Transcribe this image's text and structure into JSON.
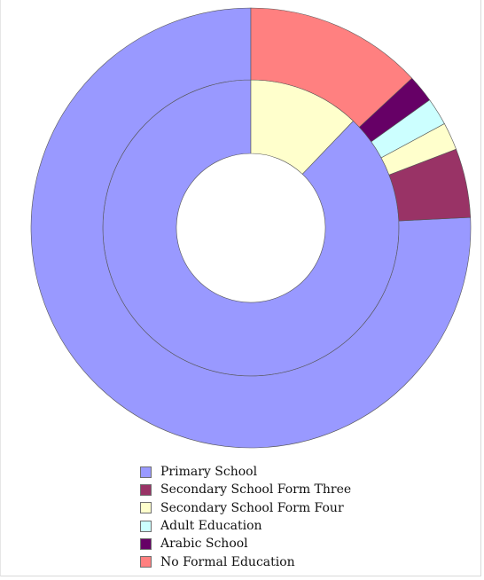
{
  "chart_data": {
    "type": "donut",
    "title": "",
    "categories": [
      "Primary School",
      "Secondary School Form Three",
      "Secondary School Form Four",
      "Adult Education",
      "Arabic School",
      "No Formal Education"
    ],
    "colors": [
      "#9999ff",
      "#993366",
      "#ffffcc",
      "#ccffff",
      "#660066",
      "#ff8080"
    ],
    "series": [
      {
        "values": [
          86.0,
          0,
          11.9,
          0,
          0,
          0
        ]
      },
      {
        "values": [
          74.7,
          5.0,
          2.0,
          2.0,
          2.0,
          12.9
        ]
      }
    ],
    "legend_position": "bottom"
  }
}
